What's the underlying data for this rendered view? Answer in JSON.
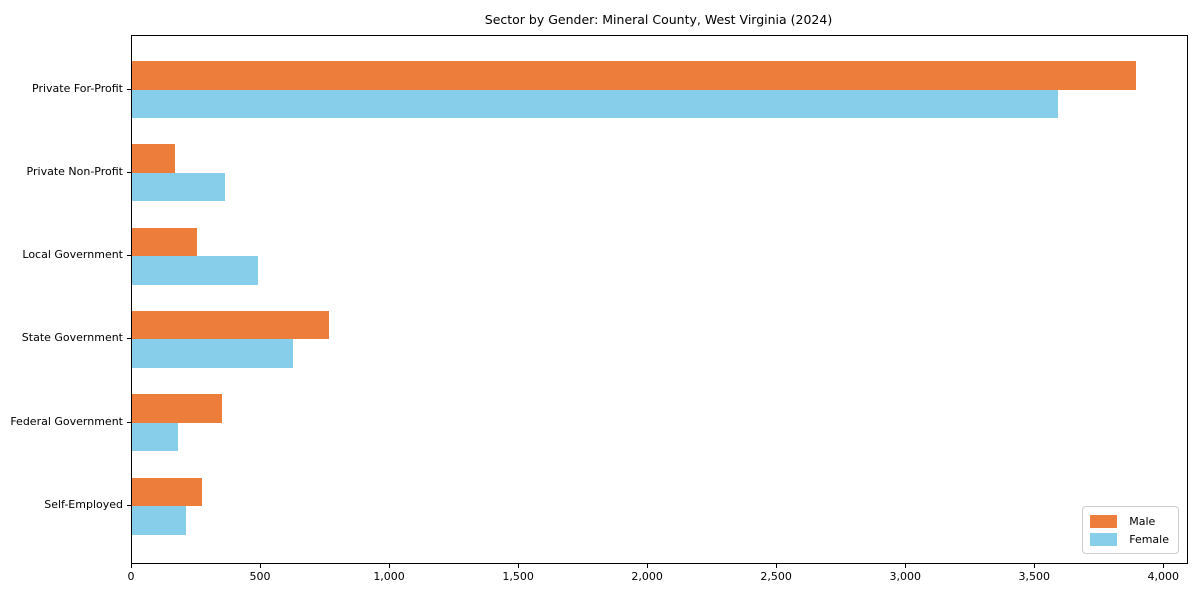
{
  "title": "Sector by Gender: Mineral County, West Virginia (2024)",
  "chart_data": {
    "type": "bar",
    "orientation": "horizontal",
    "title": "Sector by Gender: Mineral County, West Virginia (2024)",
    "categories": [
      "Private For-Profit",
      "Private Non-Profit",
      "Local Government",
      "State Government",
      "Federal Government",
      "Self-Employed"
    ],
    "series": [
      {
        "name": "Male",
        "color": "#ed7d3b",
        "values": [
          3890,
          165,
          250,
          765,
          350,
          270
        ]
      },
      {
        "name": "Female",
        "color": "#87ceeb",
        "values": [
          3590,
          360,
          490,
          625,
          180,
          210
        ]
      }
    ],
    "xlabel": "",
    "ylabel": "",
    "xlim": [
      0,
      4088
    ],
    "xticks": [
      0,
      500,
      1000,
      1500,
      2000,
      2500,
      3000,
      3500,
      4000
    ],
    "xtick_labels": [
      "0",
      "500",
      "1,000",
      "1,500",
      "2,000",
      "2,500",
      "3,000",
      "3,500",
      "4,000"
    ],
    "grid": false,
    "legend_position": "lower right",
    "colors": {
      "male": "#ed7d3b",
      "female": "#87ceeb",
      "spine": "#000000",
      "background": "#ffffff"
    }
  }
}
